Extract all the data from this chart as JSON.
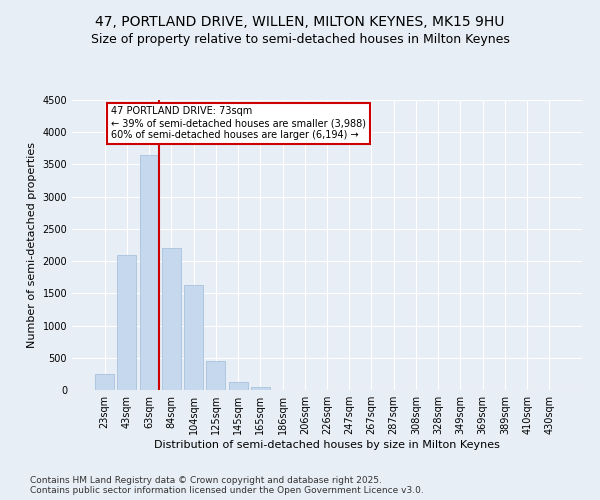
{
  "title_line1": "47, PORTLAND DRIVE, WILLEN, MILTON KEYNES, MK15 9HU",
  "title_line2": "Size of property relative to semi-detached houses in Milton Keynes",
  "xlabel": "Distribution of semi-detached houses by size in Milton Keynes",
  "ylabel": "Number of semi-detached properties",
  "categories": [
    "23sqm",
    "43sqm",
    "63sqm",
    "84sqm",
    "104sqm",
    "125sqm",
    "145sqm",
    "165sqm",
    "186sqm",
    "206sqm",
    "226sqm",
    "247sqm",
    "267sqm",
    "287sqm",
    "308sqm",
    "328sqm",
    "349sqm",
    "369sqm",
    "389sqm",
    "410sqm",
    "430sqm"
  ],
  "values": [
    250,
    2100,
    3650,
    2200,
    1625,
    450,
    120,
    40,
    0,
    0,
    0,
    0,
    0,
    0,
    0,
    0,
    0,
    0,
    0,
    0,
    0
  ],
  "bar_color": "#c5d8ed",
  "bar_edge_color": "#a0bcda",
  "vline_color": "#cc0000",
  "annotation_text": "47 PORTLAND DRIVE: 73sqm\n← 39% of semi-detached houses are smaller (3,988)\n60% of semi-detached houses are larger (6,194) →",
  "annotation_box_color": "#cc0000",
  "ylim": [
    0,
    4500
  ],
  "yticks": [
    0,
    500,
    1000,
    1500,
    2000,
    2500,
    3000,
    3500,
    4000,
    4500
  ],
  "footnote": "Contains HM Land Registry data © Crown copyright and database right 2025.\nContains public sector information licensed under the Open Government Licence v3.0.",
  "bg_color": "#e8eef5",
  "title_fontsize": 10,
  "subtitle_fontsize": 9,
  "axis_label_fontsize": 8,
  "tick_fontsize": 7,
  "footnote_fontsize": 6.5
}
